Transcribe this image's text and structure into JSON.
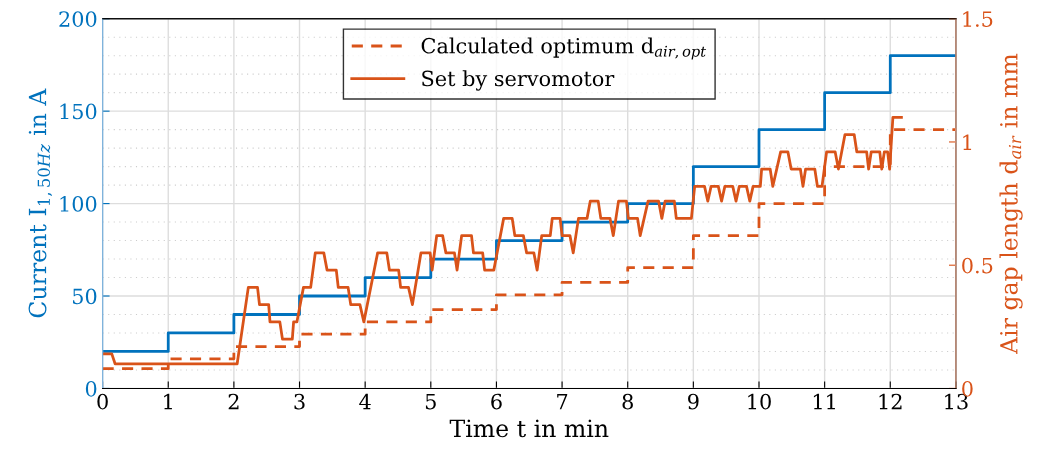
{
  "chart_data": {
    "type": "line",
    "xlabel": "Time t in min",
    "ylabel": "Current I$_{1,50Hz}$ in A",
    "y2label": "Air gap length d$_{air}$ in mm",
    "xlim": [
      0,
      13
    ],
    "xticks": [
      0,
      1,
      2,
      3,
      4,
      5,
      6,
      7,
      8,
      9,
      10,
      11,
      12,
      13
    ],
    "ylim": [
      0,
      200
    ],
    "yticks": [
      0,
      50,
      100,
      150,
      200
    ],
    "y2lim": [
      0,
      1.5
    ],
    "y2ticks": [
      0,
      0.5,
      1,
      1.5
    ],
    "grid": true,
    "legend": "top",
    "series": [
      {
        "type": "step",
        "color": "#0072bd",
        "x": [
          0,
          1,
          2,
          3,
          4,
          5,
          6,
          7,
          8,
          9,
          10,
          11,
          12,
          13
        ],
        "values": [
          20,
          30,
          40,
          50,
          60,
          70,
          80,
          90,
          100,
          120,
          140,
          160,
          180,
          180
        ]
      },
      {
        "type": "step",
        "name": "Calculated optimum d$_{air,opt}$",
        "axis": "y2",
        "line_style": "dashed",
        "color": "#d95319",
        "x": [
          0,
          1,
          2,
          3,
          4,
          5,
          6,
          7,
          8,
          9,
          10,
          11,
          12,
          13
        ],
        "values": [
          0.08,
          0.12,
          0.17,
          0.22,
          0.27,
          0.32,
          0.38,
          0.43,
          0.49,
          0.62,
          0.75,
          0.9,
          1.05,
          1.05
        ]
      },
      {
        "name": "Set by servomotor",
        "axis": "y2",
        "line_style": "solid",
        "color": "#d95319",
        "x": [
          0,
          0.14,
          0.19,
          2.05,
          2.22,
          2.36,
          2.39,
          2.53,
          2.55,
          2.7,
          2.74,
          2.89,
          2.91,
          2.96,
          3.06,
          3.17,
          3.24,
          3.37,
          3.42,
          3.56,
          3.59,
          3.74,
          3.78,
          3.92,
          3.98,
          4.19,
          4.33,
          4.37,
          4.51,
          4.54,
          4.66,
          4.72,
          4.85,
          4.99,
          5.02,
          5.09,
          5.18,
          5.23,
          5.36,
          5.4,
          5.47,
          5.62,
          5.65,
          5.79,
          5.82,
          5.96,
          6.11,
          6.24,
          6.28,
          6.41,
          6.46,
          6.57,
          6.62,
          6.69,
          6.82,
          6.85,
          6.97,
          7.0,
          7.12,
          7.17,
          7.25,
          7.38,
          7.43,
          7.55,
          7.59,
          7.73,
          7.78,
          7.86,
          7.98,
          8.01,
          8.15,
          8.19,
          8.31,
          8.47,
          8.52,
          8.57,
          8.71,
          8.74,
          8.97,
          9.02,
          9.17,
          9.22,
          9.27,
          9.38,
          9.43,
          9.48,
          9.6,
          9.65,
          9.7,
          9.81,
          9.86,
          9.91,
          10.02,
          10.04,
          10.17,
          10.21,
          10.27,
          10.33,
          10.44,
          10.49,
          10.63,
          10.67,
          10.71,
          10.85,
          10.89,
          10.96,
          11.03,
          11.16,
          11.21,
          11.26,
          11.31,
          11.45,
          11.49,
          11.64,
          11.67,
          11.71,
          11.84,
          11.87,
          11.91,
          11.96,
          11.99,
          12.04,
          12.17
        ],
        "values": [
          0.14,
          0.14,
          0.1,
          0.1,
          0.41,
          0.41,
          0.34,
          0.34,
          0.27,
          0.27,
          0.2,
          0.2,
          0.27,
          0.27,
          0.41,
          0.41,
          0.55,
          0.55,
          0.48,
          0.48,
          0.41,
          0.41,
          0.34,
          0.34,
          0.27,
          0.55,
          0.55,
          0.48,
          0.48,
          0.41,
          0.41,
          0.34,
          0.55,
          0.55,
          0.48,
          0.62,
          0.62,
          0.55,
          0.55,
          0.48,
          0.62,
          0.62,
          0.55,
          0.55,
          0.48,
          0.48,
          0.69,
          0.69,
          0.62,
          0.62,
          0.55,
          0.55,
          0.48,
          0.62,
          0.62,
          0.69,
          0.69,
          0.62,
          0.62,
          0.55,
          0.69,
          0.69,
          0.76,
          0.76,
          0.69,
          0.69,
          0.62,
          0.76,
          0.76,
          0.69,
          0.69,
          0.62,
          0.76,
          0.76,
          0.69,
          0.76,
          0.76,
          0.69,
          0.69,
          0.82,
          0.82,
          0.76,
          0.82,
          0.82,
          0.76,
          0.82,
          0.82,
          0.76,
          0.82,
          0.82,
          0.76,
          0.82,
          0.82,
          0.89,
          0.89,
          0.82,
          0.89,
          0.96,
          0.96,
          0.89,
          0.89,
          0.82,
          0.89,
          0.89,
          0.82,
          0.82,
          0.96,
          0.96,
          0.89,
          0.96,
          1.03,
          1.03,
          0.96,
          0.96,
          0.89,
          0.96,
          0.96,
          0.89,
          0.96,
          0.96,
          0.89,
          1.1,
          1.1
        ]
      }
    ]
  }
}
